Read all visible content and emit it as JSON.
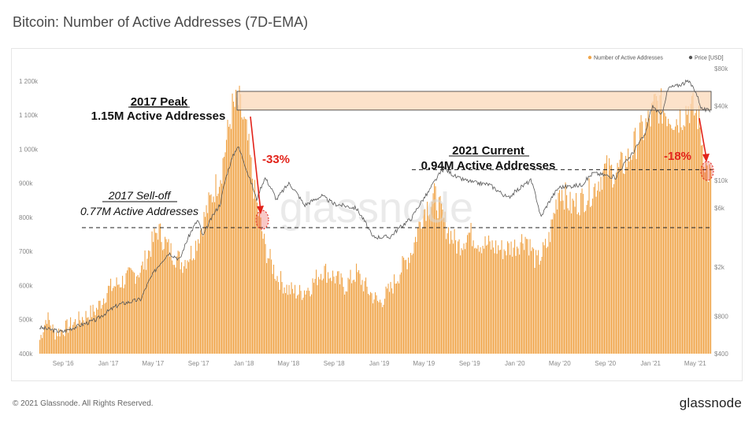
{
  "title": "Bitcoin: Number of Active Addresses (7D-EMA)",
  "footer": {
    "copyright": "© 2021 Glassnode. All Rights Reserved.",
    "logo": "glassnode"
  },
  "watermark": "glassnode",
  "colors": {
    "bars": "#f0a64c",
    "price": "#555555",
    "band": "#fbd8b8",
    "band_border": "#333333",
    "highlight": "#e2231a"
  },
  "chart_data": {
    "type": "bar",
    "x_ticks": [
      "Sep '16",
      "Jan '17",
      "May '17",
      "Sep '17",
      "Jan '18",
      "May '18",
      "Sep '18",
      "Jan '19",
      "May '19",
      "Sep '19",
      "Jan '20",
      "May '20",
      "Sep '20",
      "Jan '21",
      "May '21"
    ],
    "y_left_ticks": [
      "400k",
      "500k",
      "600k",
      "700k",
      "800k",
      "900k",
      "1 000k",
      "1 100k",
      "1 200k"
    ],
    "y_left_range": [
      400000,
      1230000
    ],
    "y_right_ticks": [
      "$400",
      "$800",
      "$2k",
      "$6k",
      "$10k",
      "$40k",
      "$80k"
    ],
    "y_right_scale": "log",
    "legend": [
      "Number of Active Addresses",
      "Price [USD]"
    ],
    "legend_position": "top-right",
    "x_range": [
      "2016-07-01",
      "2021-06-15"
    ],
    "series": [
      {
        "name": "Number of Active Addresses",
        "x": [
          "2016-07-01",
          "2016-07-20",
          "2016-08-10",
          "2016-09-01",
          "2016-10-15",
          "2016-12-01",
          "2017-01-01",
          "2017-02-15",
          "2017-04-01",
          "2017-05-15",
          "2017-06-15",
          "2017-07-20",
          "2017-08-20",
          "2017-10-01",
          "2017-11-01",
          "2017-12-01",
          "2017-12-20",
          "2018-01-10",
          "2018-02-01",
          "2018-03-01",
          "2018-04-01",
          "2018-05-01",
          "2018-06-01",
          "2018-07-01",
          "2018-08-01",
          "2018-09-01",
          "2018-10-01",
          "2018-11-01",
          "2018-12-01",
          "2019-01-01",
          "2019-02-01",
          "2019-03-01",
          "2019-04-01",
          "2019-05-01",
          "2019-06-01",
          "2019-07-01",
          "2019-08-01",
          "2019-09-01",
          "2019-10-01",
          "2019-11-01",
          "2019-12-01",
          "2020-01-01",
          "2020-02-01",
          "2020-03-01",
          "2020-04-01",
          "2020-05-01",
          "2020-06-01",
          "2020-07-01",
          "2020-08-01",
          "2020-09-01",
          "2020-10-01",
          "2020-11-01",
          "2020-12-01",
          "2021-01-01",
          "2021-01-15",
          "2021-02-15",
          "2021-03-15",
          "2021-04-15",
          "2021-05-10",
          "2021-06-01",
          "2021-06-15"
        ],
        "values": [
          450000,
          520000,
          470000,
          480000,
          510000,
          540000,
          600000,
          630000,
          660000,
          780000,
          720000,
          680000,
          720000,
          860000,
          950000,
          1140000,
          1160000,
          1060000,
          880000,
          720000,
          640000,
          600000,
          590000,
          610000,
          660000,
          640000,
          610000,
          650000,
          600000,
          560000,
          600000,
          660000,
          720000,
          840000,
          880000,
          790000,
          730000,
          770000,
          740000,
          730000,
          720000,
          730000,
          760000,
          680000,
          740000,
          910000,
          850000,
          870000,
          900000,
          960000,
          950000,
          990000,
          1060000,
          1110000,
          1160000,
          1130000,
          1110000,
          1150000,
          1120000,
          960000,
          940000
        ]
      },
      {
        "name": "Price [USD]",
        "x": [
          "2016-07-01",
          "2016-09-01",
          "2016-12-01",
          "2017-02-01",
          "2017-04-01",
          "2017-05-15",
          "2017-06-15",
          "2017-07-15",
          "2017-09-01",
          "2017-09-15",
          "2017-11-01",
          "2017-12-17",
          "2018-01-15",
          "2018-02-06",
          "2018-03-01",
          "2018-04-01",
          "2018-05-05",
          "2018-06-15",
          "2018-08-01",
          "2018-09-01",
          "2018-11-01",
          "2018-12-15",
          "2019-02-01",
          "2019-04-01",
          "2019-05-15",
          "2019-06-26",
          "2019-08-01",
          "2019-09-15",
          "2019-10-25",
          "2019-12-15",
          "2020-02-15",
          "2020-03-13",
          "2020-05-01",
          "2020-07-01",
          "2020-08-01",
          "2020-10-01",
          "2020-11-15",
          "2020-12-20",
          "2021-01-08",
          "2021-02-01",
          "2021-02-21",
          "2021-03-15",
          "2021-04-14",
          "2021-05-01",
          "2021-05-20",
          "2021-06-15"
        ],
        "values": [
          650,
          600,
          750,
          1000,
          1100,
          2000,
          2600,
          2300,
          4800,
          3500,
          6500,
          19000,
          11000,
          7000,
          10500,
          7000,
          9500,
          6300,
          7500,
          6500,
          6000,
          3500,
          3500,
          5000,
          8000,
          12500,
          10500,
          9600,
          9300,
          7200,
          10000,
          5000,
          8800,
          9200,
          11500,
          10600,
          16500,
          23500,
          40000,
          33000,
          56000,
          58000,
          63000,
          55000,
          38000,
          36000
        ]
      }
    ],
    "annotations": [
      {
        "text_1": "2017 Peak",
        "text_2": "1.15M Active Addresses"
      },
      {
        "text_1": "2017 Sell-off",
        "text_2": "0.77M Active Addresses"
      },
      {
        "text_1": "2021 Current",
        "text_2": "0.94M Active Addresses"
      }
    ],
    "reference_lines": [
      {
        "label": "2017 Sell-off",
        "value": 770000
      },
      {
        "label": "2021 Current",
        "value": 940000
      }
    ],
    "peak_band": [
      1115000,
      1170000
    ],
    "changes": [
      "-33%",
      "-18%"
    ]
  }
}
